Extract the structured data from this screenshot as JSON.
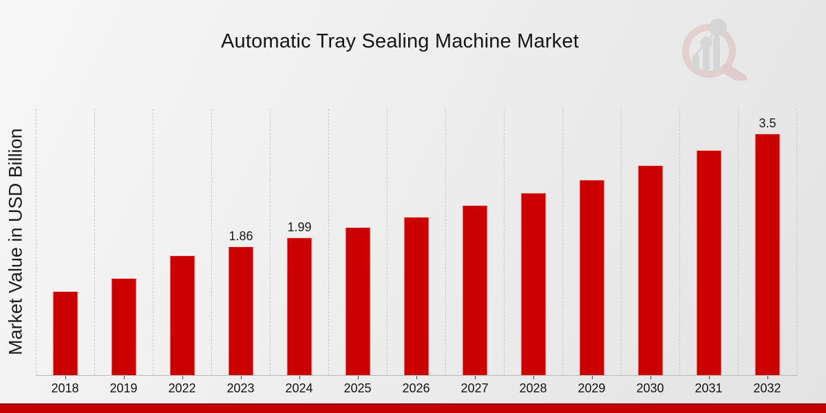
{
  "page": {
    "title": "Automatic Tray Sealing Machine Market",
    "y_axis_label": "Market Value in USD Billion"
  },
  "chart_data": {
    "type": "bar",
    "title": "Automatic Tray Sealing Machine Market",
    "xlabel": "",
    "ylabel": "Market Value in USD Billion",
    "categories": [
      "2018",
      "2019",
      "2022",
      "2023",
      "2024",
      "2025",
      "2026",
      "2027",
      "2028",
      "2029",
      "2030",
      "2031",
      "2032"
    ],
    "values": [
      1.21,
      1.4,
      1.73,
      1.86,
      1.99,
      2.14,
      2.29,
      2.46,
      2.64,
      2.83,
      3.04,
      3.26,
      3.5
    ],
    "bar_labels": [
      "",
      "",
      "",
      "1.86",
      "1.99",
      "",
      "",
      "",
      "",
      "",
      "",
      "",
      "3.5"
    ],
    "ylim": [
      0,
      3.87
    ],
    "grid": "vertical-dashed",
    "legend": "none",
    "bar_color": "#cb0101",
    "unit": "USD Billion"
  },
  "colors": {
    "bar": "#cb0101",
    "bottom_band": "#c40101",
    "bottom_band_edge": "#8f0d0d",
    "gridline": "#c9c9c9",
    "text": "#151515"
  },
  "watermark": {
    "icon": "magnifier-bar-chart-logo"
  }
}
